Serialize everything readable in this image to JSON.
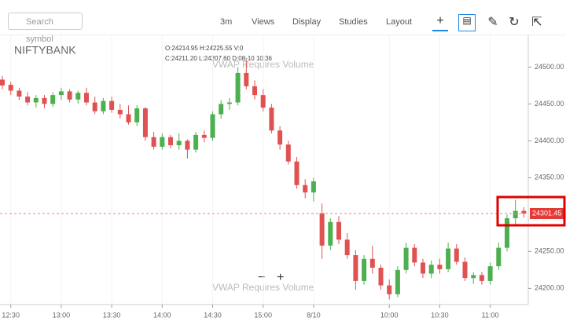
{
  "toolbar": {
    "search": "Search symbol",
    "menus": [
      "3m",
      "Views",
      "Display",
      "Studies",
      "Layout"
    ]
  },
  "symbol": "NIFTYBANK",
  "ohlc_info": {
    "line1": "O:24214.95  H:24225.55  V:0",
    "line2": "C:24211.20  L:24207.60  D:08-10 10:36"
  },
  "overlay_text": [
    "VWAP Requires Volume",
    "VWAP Requires Volume"
  ],
  "zoom": {
    "out": "−",
    "in": "+"
  },
  "chart_data": {
    "type": "candlestick",
    "up_color": "#4caf50",
    "down_color": "#e05252",
    "open": [
      24483,
      24476,
      24468,
      24460,
      24452,
      24458,
      24450,
      24462,
      24467,
      24456,
      24465,
      24452,
      24440,
      24454,
      24442,
      24436,
      24425,
      24444,
      24405,
      24392,
      24405,
      24394,
      24400,
      24388,
      24408,
      24404,
      24436,
      24450,
      24452,
      24492,
      24474,
      24462,
      24445,
      24414,
      24395,
      24372,
      24340,
      24330,
      24302,
      24258,
      24290,
      24266,
      24245,
      24210,
      24240,
      24228,
      24204,
      24192,
      24225,
      24255,
      24235,
      24220,
      24232,
      24226,
      24254,
      24236,
      24214,
      24218,
      24210,
      24230,
      24255,
      24295,
      24305
    ],
    "high": [
      24488,
      24480,
      24472,
      24466,
      24462,
      24462,
      24466,
      24472,
      24470,
      24468,
      24472,
      24460,
      24458,
      24460,
      24450,
      24448,
      24448,
      24446,
      24412,
      24410,
      24408,
      24410,
      24402,
      24412,
      24414,
      24440,
      24455,
      24458,
      24500,
      24510,
      24482,
      24470,
      24450,
      24420,
      24400,
      24378,
      24348,
      24350,
      24315,
      24295,
      24298,
      24275,
      24252,
      24245,
      24258,
      24232,
      24212,
      24230,
      24262,
      24260,
      24240,
      24238,
      24240,
      24262,
      24260,
      24242,
      24222,
      24222,
      24235,
      24262,
      24300,
      24320,
      24310
    ],
    "low": [
      24470,
      24462,
      24455,
      24448,
      24445,
      24444,
      24446,
      24455,
      24452,
      24450,
      24448,
      24436,
      24436,
      24438,
      24430,
      24422,
      24420,
      24400,
      24388,
      24388,
      24390,
      24388,
      24376,
      24384,
      24398,
      24400,
      24430,
      24442,
      24448,
      24470,
      24456,
      24440,
      24410,
      24388,
      24368,
      24335,
      24322,
      24318,
      24240,
      24252,
      24260,
      24240,
      24198,
      24205,
      24220,
      24198,
      24185,
      24188,
      24220,
      24230,
      24214,
      24214,
      24220,
      24222,
      24232,
      24210,
      24206,
      24205,
      24205,
      24225,
      24250,
      24285,
      24296
    ],
    "close": [
      24475,
      24468,
      24460,
      24452,
      24458,
      24450,
      24462,
      24467,
      24456,
      24465,
      24452,
      24440,
      24454,
      24442,
      24436,
      24425,
      24444,
      24405,
      24392,
      24405,
      24394,
      24400,
      24388,
      24408,
      24404,
      24436,
      24450,
      24452,
      24492,
      24474,
      24462,
      24445,
      24414,
      24395,
      24372,
      24340,
      24330,
      24345,
      24258,
      24290,
      24266,
      24245,
      24210,
      24240,
      24228,
      24204,
      24192,
      24225,
      24255,
      24235,
      24220,
      24232,
      24226,
      24254,
      24236,
      24214,
      24218,
      24210,
      24230,
      24255,
      24295,
      24305,
      24301.45
    ],
    "last_price": 24301.45,
    "ylim": [
      24178,
      24543
    ],
    "yticks": [
      {
        "value": 24200,
        "label": "24200.00"
      },
      {
        "value": 24250,
        "label": "24250.00"
      },
      {
        "value": 24350,
        "label": "24350.00"
      },
      {
        "value": 24400,
        "label": "24400.00"
      },
      {
        "value": 24450,
        "label": "24450.00"
      },
      {
        "value": 24500,
        "label": "24500.00"
      }
    ],
    "xticks": [
      {
        "value": 1,
        "label": "12:30"
      },
      {
        "value": 7,
        "label": "13:00"
      },
      {
        "value": 13,
        "label": "13:30"
      },
      {
        "value": 19,
        "label": "14:00"
      },
      {
        "value": 25,
        "label": "14:30"
      },
      {
        "value": 31,
        "label": "15:00"
      },
      {
        "value": 37,
        "label": "8/10"
      },
      {
        "value": 46,
        "label": "10:00"
      },
      {
        "value": 52,
        "label": "10:30"
      },
      {
        "value": 58,
        "label": "11:00"
      }
    ]
  }
}
